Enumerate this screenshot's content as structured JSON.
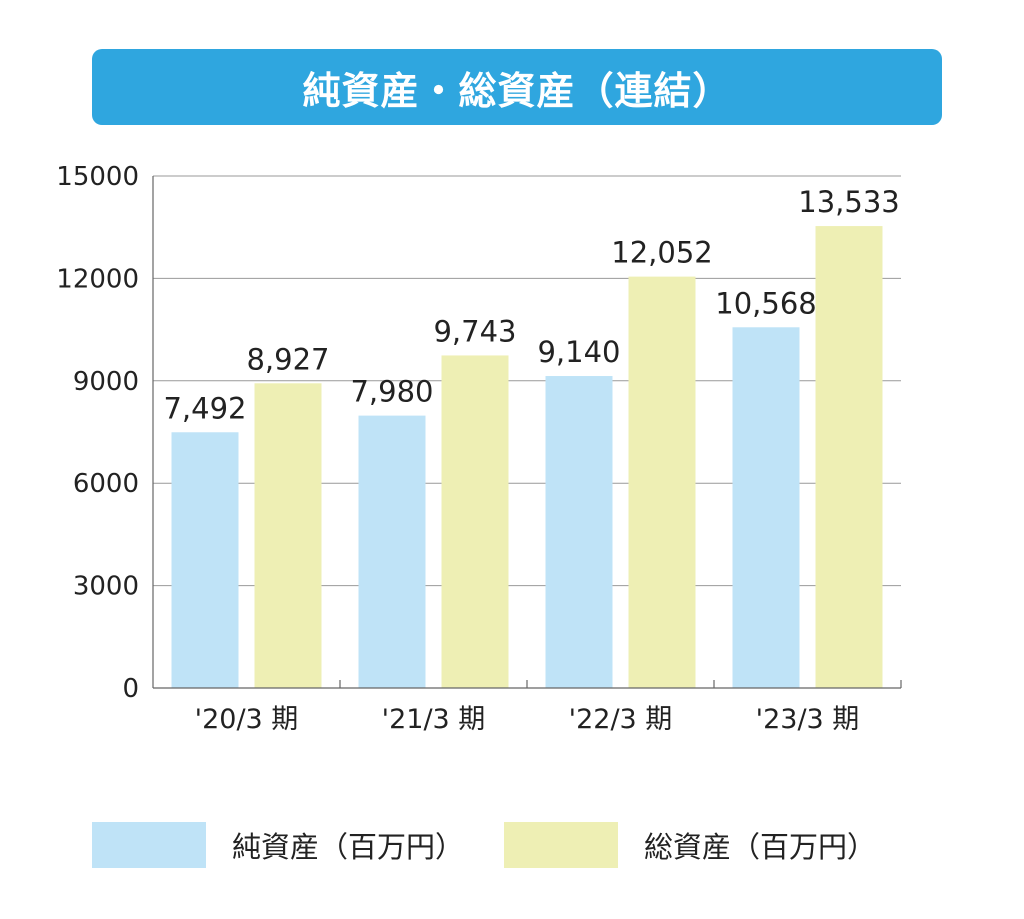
{
  "title": "純資産・総資産（連結）",
  "colors": {
    "banner": "#2fa6df",
    "series_net": "#bfe3f7",
    "series_total": "#eeefb4",
    "grid": "#999999",
    "axis": "#666666"
  },
  "legend": {
    "items": [
      {
        "label": "純資産（百万円）",
        "color": "#bfe3f7"
      },
      {
        "label": "総資産（百万円）",
        "color": "#eeefb4"
      }
    ]
  },
  "chart_data": {
    "type": "bar",
    "title": "純資産・総資産（連結）",
    "categories": [
      "'20/3 期",
      "'21/3 期",
      "'22/3 期",
      "'23/3 期"
    ],
    "series": [
      {
        "name": "純資産（百万円）",
        "values": [
          7492,
          7980,
          9140,
          10568
        ],
        "labels": [
          "7,492",
          "7,980",
          "9,140",
          "10,568"
        ],
        "color": "#bfe3f7"
      },
      {
        "name": "総資産（百万円）",
        "values": [
          8927,
          9743,
          12052,
          13533
        ],
        "labels": [
          "8,927",
          "9,743",
          "12,052",
          "13,533"
        ],
        "color": "#eeefb4"
      }
    ],
    "yticks": [
      0,
      3000,
      6000,
      9000,
      12000,
      15000
    ],
    "ylim": [
      0,
      15000
    ],
    "grid": true,
    "legend_position": "bottom"
  }
}
